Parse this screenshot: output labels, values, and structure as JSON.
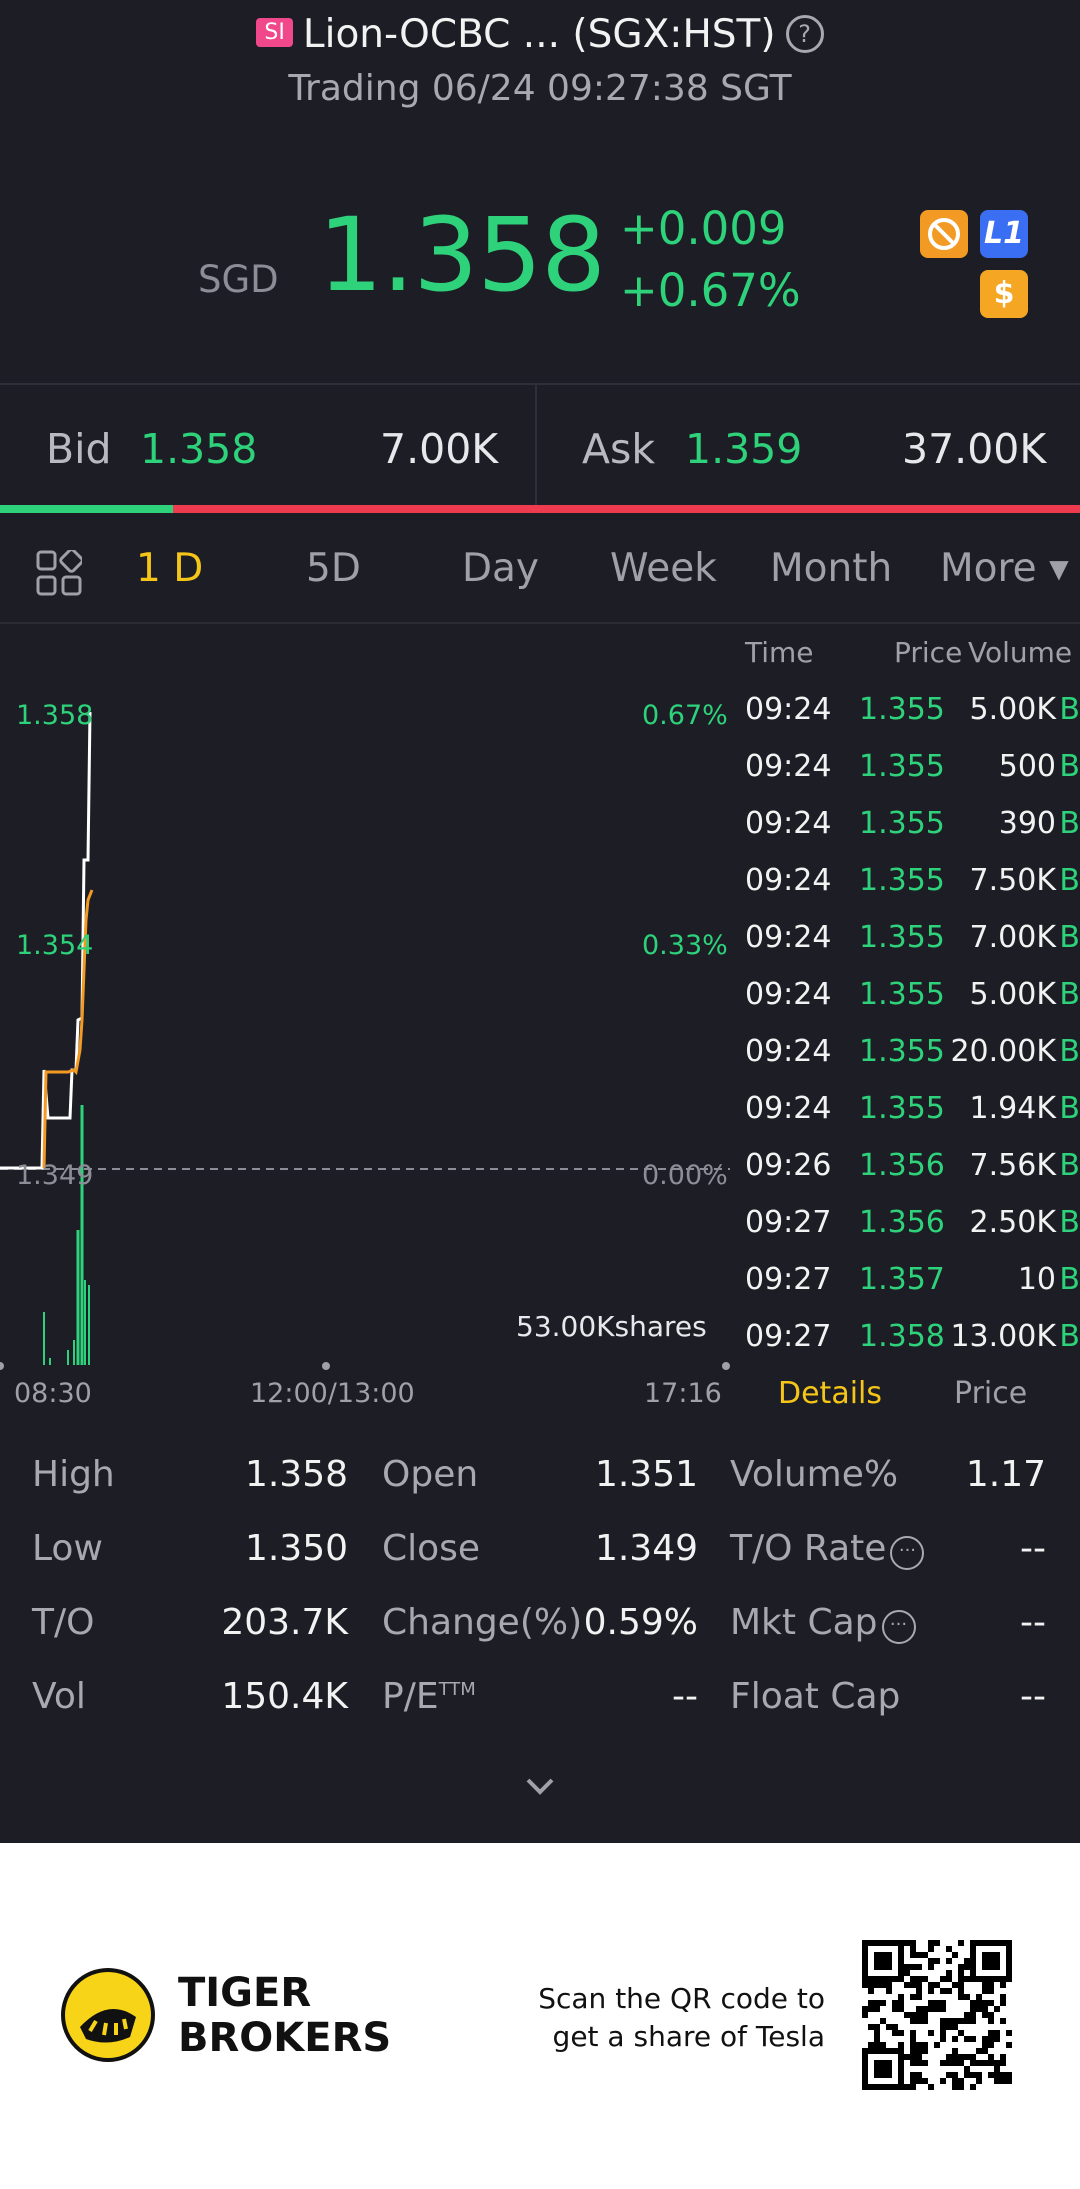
{
  "header": {
    "market_badge": "SI",
    "title": "Lion-OCBC ... (SGX:HST)",
    "status": "Trading 06/24 09:27:38 SGT"
  },
  "quote": {
    "currency": "SGD",
    "price": "1.358",
    "change": "+0.009",
    "change_pct": "+0.67%",
    "badges": [
      {
        "icon": "no-shorting-icon",
        "color": "#f39a24"
      },
      {
        "icon": "level1-icon",
        "label": "L1",
        "color": "#3b6ff3"
      },
      {
        "icon": "dollar-icon",
        "label": "$",
        "color": "#f5a623"
      }
    ]
  },
  "bidask": {
    "bid_label": "Bid",
    "bid_price": "1.358",
    "bid_volume": "7.00K",
    "ask_label": "Ask",
    "ask_price": "1.359",
    "ask_volume": "37.00K",
    "bid_ratio": 0.16
  },
  "tabs": {
    "items": [
      "1 D",
      "5D",
      "Day",
      "Week",
      "Month",
      "More ▾"
    ],
    "active": "1 D"
  },
  "chart": {
    "y_high": "1.358",
    "y_mid": "1.354",
    "y_base": "1.349",
    "pct_high": "0.67%",
    "pct_mid": "0.33%",
    "pct_base": "0.00%",
    "volume_label": "53.00Kshares",
    "x_start": "08:30",
    "x_mid": "12:00/13:00",
    "x_end": "17:16",
    "colors": {
      "price": "#ffffff",
      "avg": "#f39a24",
      "volume": "#2ed27a"
    }
  },
  "ticks": {
    "headers": {
      "time": "Time",
      "price": "Price",
      "volume": "Volume"
    },
    "rows": [
      {
        "time": "09:24",
        "price": "1.355",
        "volume": "5.00K",
        "side": "B"
      },
      {
        "time": "09:24",
        "price": "1.355",
        "volume": "500",
        "side": "B"
      },
      {
        "time": "09:24",
        "price": "1.355",
        "volume": "390",
        "side": "B"
      },
      {
        "time": "09:24",
        "price": "1.355",
        "volume": "7.50K",
        "side": "B"
      },
      {
        "time": "09:24",
        "price": "1.355",
        "volume": "7.00K",
        "side": "B"
      },
      {
        "time": "09:24",
        "price": "1.355",
        "volume": "5.00K",
        "side": "B"
      },
      {
        "time": "09:24",
        "price": "1.355",
        "volume": "20.00K",
        "side": "B"
      },
      {
        "time": "09:24",
        "price": "1.355",
        "volume": "1.94K",
        "side": "B"
      },
      {
        "time": "09:26",
        "price": "1.356",
        "volume": "7.56K",
        "side": "B"
      },
      {
        "time": "09:27",
        "price": "1.356",
        "volume": "2.50K",
        "side": "B"
      },
      {
        "time": "09:27",
        "price": "1.357",
        "volume": "10",
        "side": "B"
      },
      {
        "time": "09:27",
        "price": "1.358",
        "volume": "13.00K",
        "side": "B"
      }
    ],
    "tab_details": "Details",
    "tab_price": "Price"
  },
  "stats": {
    "col1": [
      {
        "label": "High",
        "value": "1.358"
      },
      {
        "label": "Low",
        "value": "1.350"
      },
      {
        "label": "T/O",
        "value": "203.7K"
      },
      {
        "label": "Vol",
        "value": "150.4K"
      }
    ],
    "col2": [
      {
        "label": "Open",
        "value": "1.351"
      },
      {
        "label": "Close",
        "value": "1.349"
      },
      {
        "label": "Change(%)",
        "value": "0.59%"
      },
      {
        "label": "P/E",
        "sup": "TTM",
        "value": "--"
      }
    ],
    "col3": [
      {
        "label": "Volume%",
        "value": "1.17"
      },
      {
        "label": "T/O Rate",
        "value": "--"
      },
      {
        "label": "Mkt Cap",
        "value": "--"
      },
      {
        "label": "Float Cap",
        "value": "--"
      }
    ]
  },
  "footer": {
    "brand_line1": "TIGER",
    "brand_line2": "BROKERS",
    "promo_line1": "Scan the QR code to",
    "promo_line2": "get a share of Tesla"
  }
}
